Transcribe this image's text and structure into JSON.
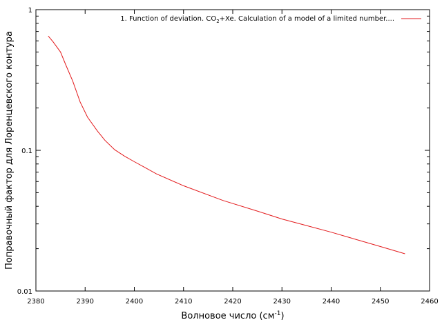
{
  "chart_data": {
    "type": "line",
    "xlabel_main": "Волновое число (см",
    "xlabel_sup": "-1",
    "xlabel_end": ")",
    "ylabel": "Поправочный фактор для Лоренцевского контура",
    "y_scale": "log",
    "xlim": [
      2380,
      2460
    ],
    "ylim": [
      0.01,
      1
    ],
    "x_ticks": [
      2380,
      2390,
      2400,
      2410,
      2420,
      2430,
      2440,
      2450,
      2460
    ],
    "y_ticks": [
      0.01,
      0.1,
      1
    ],
    "y_tick_labels": [
      "0.01",
      "0.1",
      "1"
    ],
    "grid": false,
    "legend_position": "top-right",
    "legend": {
      "prefix": "1. Function of deviation. CO",
      "sub": "2",
      "suffix": "+Xe. Calculation of a model of a limited number...."
    },
    "series": [
      {
        "color": "#e31a1c",
        "x": [
          2382.5,
          2383.5,
          2385,
          2386,
          2387.5,
          2389,
          2390.5,
          2392.5,
          2394,
          2396,
          2398,
          2400,
          2402,
          2404.5,
          2410,
          2418,
          2425,
          2430,
          2435,
          2440,
          2445,
          2450,
          2455
        ],
        "y": [
          0.65,
          0.59,
          0.5,
          0.41,
          0.31,
          0.22,
          0.172,
          0.137,
          0.118,
          0.101,
          0.091,
          0.083,
          0.076,
          0.068,
          0.056,
          0.044,
          0.037,
          0.0325,
          0.0292,
          0.0262,
          0.0233,
          0.0207,
          0.0184
        ]
      }
    ]
  }
}
